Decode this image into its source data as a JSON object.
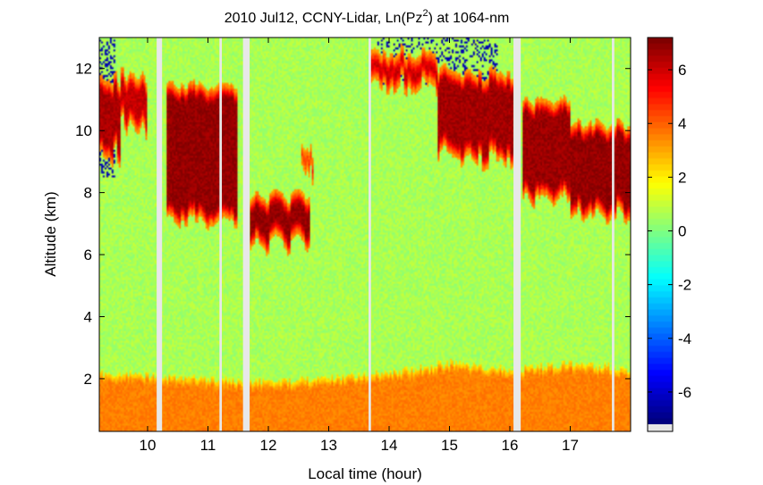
{
  "chart_data": {
    "type": "heatmap",
    "title_parts": {
      "prefix": "2010 Jul12, CCNY-Lidar, Ln(Pz",
      "superscript": "2",
      "suffix": ") at 1064-nm"
    },
    "xlabel": "Local time (hour)",
    "ylabel": "Altitude (km)",
    "xlim": [
      9.2,
      18.0
    ],
    "ylim": [
      0.3,
      13.0
    ],
    "x_ticks": [
      10,
      11,
      12,
      13,
      14,
      15,
      16,
      17
    ],
    "y_ticks": [
      2,
      4,
      6,
      8,
      10,
      12
    ],
    "colorbar": {
      "range": [
        -7.2,
        7.2
      ],
      "ticks": [
        -6,
        -4,
        -2,
        0,
        2,
        4,
        6
      ],
      "colormap": "jet"
    },
    "data_gaps_hour": [
      {
        "start": 10.15,
        "end": 10.24
      },
      {
        "start": 11.19,
        "end": 11.23
      },
      {
        "start": 11.58,
        "end": 11.69
      },
      {
        "start": 13.66,
        "end": 13.7
      },
      {
        "start": 16.06,
        "end": 16.18
      },
      {
        "start": 17.69,
        "end": 17.73
      }
    ],
    "layers": {
      "background_value": 0.6,
      "boundary_layer": {
        "value": 3.6,
        "top_km": [
          {
            "t": 9.2,
            "z": 2.2
          },
          {
            "t": 11.0,
            "z": 2.0
          },
          {
            "t": 12.0,
            "z": 1.9
          },
          {
            "t": 13.0,
            "z": 2.0
          },
          {
            "t": 14.0,
            "z": 2.2
          },
          {
            "t": 15.0,
            "z": 2.5
          },
          {
            "t": 16.0,
            "z": 2.3
          },
          {
            "t": 17.0,
            "z": 2.5
          },
          {
            "t": 18.0,
            "z": 2.3
          }
        ]
      },
      "clouds": [
        {
          "t_start": 9.2,
          "t_end": 9.55,
          "z_bottom": 9.2,
          "z_top": 11.7,
          "peak": 6.6
        },
        {
          "t_start": 9.55,
          "t_end": 10.0,
          "z_bottom": 10.1,
          "z_top": 11.8,
          "peak": 6.2
        },
        {
          "t_start": 10.3,
          "t_end": 11.5,
          "z_bottom": 7.1,
          "z_top": 11.5,
          "peak": 6.9
        },
        {
          "t_start": 11.7,
          "t_end": 12.7,
          "z_bottom": 6.3,
          "z_top": 7.9,
          "peak": 6.9
        },
        {
          "t_start": 12.55,
          "t_end": 12.75,
          "z_bottom": 8.6,
          "z_top": 9.4,
          "peak": 5.0
        },
        {
          "t_start": 13.7,
          "t_end": 14.8,
          "z_bottom": 11.4,
          "z_top": 12.5,
          "peak": 6.2
        },
        {
          "t_start": 14.8,
          "t_end": 16.05,
          "z_bottom": 9.1,
          "z_top": 11.9,
          "peak": 6.7
        },
        {
          "t_start": 16.2,
          "t_end": 17.0,
          "z_bottom": 7.8,
          "z_top": 11.0,
          "peak": 6.8
        },
        {
          "t_start": 17.0,
          "t_end": 18.0,
          "z_bottom": 7.2,
          "z_top": 10.2,
          "peak": 6.9
        }
      ],
      "noisy_top_value": -6.5
    }
  }
}
